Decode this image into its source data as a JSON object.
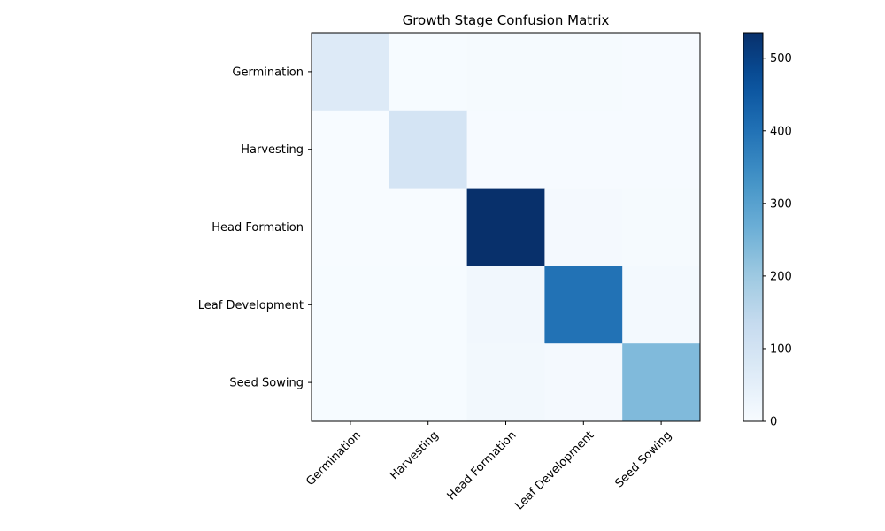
{
  "chart_data": {
    "type": "heatmap",
    "title": "Growth Stage Confusion Matrix",
    "xlabel": "",
    "ylabel": "",
    "x_categories": [
      "Germination",
      "Harvesting",
      "Head Formation",
      "Leaf Development",
      "Seed Sowing"
    ],
    "y_categories": [
      "Germination",
      "Harvesting",
      "Head Formation",
      "Leaf Development",
      "Seed Sowing"
    ],
    "matrix": [
      [
        70,
        2,
        5,
        6,
        4
      ],
      [
        1,
        95,
        4,
        3,
        4
      ],
      [
        1,
        1,
        535,
        8,
        5
      ],
      [
        2,
        2,
        15,
        400,
        10
      ],
      [
        2,
        2,
        14,
        8,
        240
      ]
    ],
    "colormap": "Blues",
    "colorbar": {
      "min": 0,
      "max": 535,
      "ticks": [
        0,
        100,
        200,
        300,
        400,
        500
      ]
    },
    "x_tick_rotation_deg": 45,
    "legend": "none",
    "grid": false
  }
}
